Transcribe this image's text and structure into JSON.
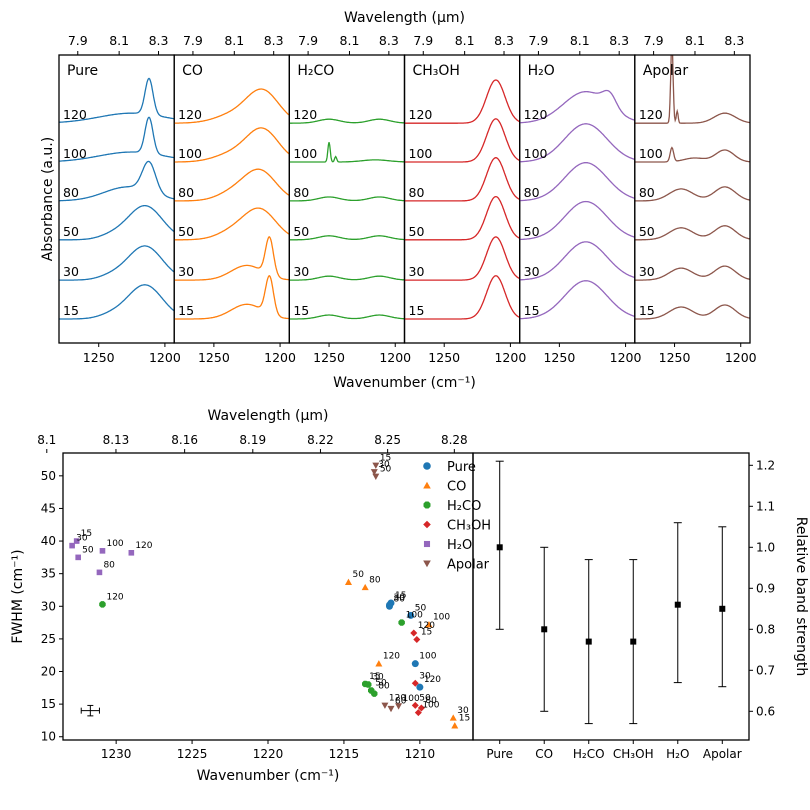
{
  "colors": {
    "Pure": "#1f77b4",
    "CO": "#ff7f0e",
    "H2CO": "#2ca02c",
    "CH3OH": "#d62728",
    "H2O": "#9467bd",
    "Apolar": "#8c564b"
  },
  "chart_data": [
    {
      "type": "line",
      "title": "",
      "xlabel": "Wavenumber (cm⁻¹)",
      "ylabel": "Absorbance (a.u.)",
      "top_xlabel": "Wavelength (μm)",
      "xlim": [
        1280,
        1193
      ],
      "xticks": [
        "1250",
        "1200"
      ],
      "top_ticks": [
        "7.9",
        "8.1",
        "8.3"
      ],
      "legend": "none",
      "panels": [
        {
          "name": "Pure",
          "label": "Pure",
          "temps": [
            "120",
            "100",
            "80",
            "50",
            "30",
            "15"
          ]
        },
        {
          "name": "CO",
          "label": "CO",
          "temps": [
            "120",
            "100",
            "80",
            "50",
            "30",
            "15"
          ]
        },
        {
          "name": "H2CO",
          "label": "H₂CO",
          "temps": [
            "120",
            "100",
            "80",
            "50",
            "30",
            "15"
          ]
        },
        {
          "name": "CH3OH",
          "label": "CH₃OH",
          "temps": [
            "120",
            "100",
            "80",
            "50",
            "30",
            "15"
          ]
        },
        {
          "name": "H2O",
          "label": "H₂O",
          "temps": [
            "120",
            "100",
            "80",
            "50",
            "30",
            "15"
          ]
        },
        {
          "name": "Apolar",
          "label": "Apolar",
          "temps": [
            "120",
            "100",
            "80",
            "50",
            "30",
            "15"
          ]
        }
      ]
    },
    {
      "type": "scatter",
      "title": "",
      "xlabel": "Wavenumber (cm⁻¹)",
      "ylabel": "FWHM (cm⁻¹)",
      "top_xlabel": "Wavelength (μm)",
      "xlim": [
        1233.5,
        1206.5
      ],
      "ylim": [
        9.5,
        53.5
      ],
      "xticks": [
        "1230",
        "1225",
        "1220",
        "1215",
        "1210"
      ],
      "yticks": [
        "10",
        "15",
        "20",
        "25",
        "30",
        "35",
        "40",
        "45",
        "50"
      ],
      "top_ticks": [
        "8.1",
        "8.13",
        "8.16",
        "8.19",
        "8.22",
        "8.25",
        "8.28"
      ],
      "legend_position": "top-right",
      "legend": [
        {
          "name": "Pure",
          "label": "Pure"
        },
        {
          "name": "CO",
          "label": "CO"
        },
        {
          "name": "H2CO",
          "label": "H₂CO"
        },
        {
          "name": "CH3OH",
          "label": "CH₃OH"
        },
        {
          "name": "H2O",
          "label": "H₂O"
        },
        {
          "name": "Apolar",
          "label": "Apolar"
        }
      ],
      "error_bar": {
        "x": 1231.7,
        "y": 14.0,
        "xerr": 0.6,
        "yerr": 0.8
      },
      "points": [
        {
          "s": "Pure",
          "x": 1211.9,
          "y": 30.5,
          "t": "15"
        },
        {
          "s": "Pure",
          "x": 1212.0,
          "y": 30.2,
          "t": "30"
        },
        {
          "s": "Pure",
          "x": 1210.6,
          "y": 28.6,
          "t": "50"
        },
        {
          "s": "Pure",
          "x": 1212.0,
          "y": 30.0,
          "t": "80"
        },
        {
          "s": "Pure",
          "x": 1210.3,
          "y": 21.2,
          "t": "100"
        },
        {
          "s": "Pure",
          "x": 1210.0,
          "y": 17.6,
          "t": "120"
        },
        {
          "s": "CO",
          "x": 1207.7,
          "y": 11.7,
          "t": "15"
        },
        {
          "s": "CO",
          "x": 1207.8,
          "y": 12.9,
          "t": "30"
        },
        {
          "s": "CO",
          "x": 1214.7,
          "y": 33.7,
          "t": "50"
        },
        {
          "s": "CO",
          "x": 1213.6,
          "y": 32.9,
          "t": "80"
        },
        {
          "s": "CO",
          "x": 1209.4,
          "y": 27.2,
          "t": "100"
        },
        {
          "s": "CO",
          "x": 1212.7,
          "y": 21.2,
          "t": "120"
        },
        {
          "s": "H2CO",
          "x": 1213.6,
          "y": 18.1,
          "t": "15"
        },
        {
          "s": "H2CO",
          "x": 1213.4,
          "y": 18.0,
          "t": "30"
        },
        {
          "s": "H2CO",
          "x": 1213.2,
          "y": 17.1,
          "t": "50"
        },
        {
          "s": "H2CO",
          "x": 1213.0,
          "y": 16.6,
          "t": "80"
        },
        {
          "s": "H2CO",
          "x": 1211.2,
          "y": 27.5,
          "t": "100"
        },
        {
          "s": "H2CO",
          "x": 1230.9,
          "y": 30.3,
          "t": "120"
        },
        {
          "s": "CH3OH",
          "x": 1210.2,
          "y": 24.9,
          "t": "15"
        },
        {
          "s": "CH3OH",
          "x": 1210.3,
          "y": 18.2,
          "t": "30"
        },
        {
          "s": "CH3OH",
          "x": 1210.3,
          "y": 14.8,
          "t": "50"
        },
        {
          "s": "CH3OH",
          "x": 1209.9,
          "y": 14.4,
          "t": "80"
        },
        {
          "s": "CH3OH",
          "x": 1210.1,
          "y": 13.7,
          "t": "100"
        },
        {
          "s": "CH3OH",
          "x": 1210.4,
          "y": 25.9,
          "t": "120"
        },
        {
          "s": "H2O",
          "x": 1232.6,
          "y": 40.0,
          "t": "15"
        },
        {
          "s": "H2O",
          "x": 1232.9,
          "y": 39.3,
          "t": "30"
        },
        {
          "s": "H2O",
          "x": 1232.5,
          "y": 37.5,
          "t": "50"
        },
        {
          "s": "H2O",
          "x": 1231.1,
          "y": 35.2,
          "t": "80"
        },
        {
          "s": "H2O",
          "x": 1230.9,
          "y": 38.5,
          "t": "100"
        },
        {
          "s": "H2O",
          "x": 1229.0,
          "y": 38.2,
          "t": "120"
        },
        {
          "s": "Apolar",
          "x": 1212.9,
          "y": 51.6,
          "t": "15"
        },
        {
          "s": "Apolar",
          "x": 1213.0,
          "y": 50.6,
          "t": "30"
        },
        {
          "s": "Apolar",
          "x": 1212.9,
          "y": 49.9,
          "t": "50"
        },
        {
          "s": "Apolar",
          "x": 1211.9,
          "y": 14.3,
          "t": "80"
        },
        {
          "s": "Apolar",
          "x": 1211.4,
          "y": 14.7,
          "t": "100"
        },
        {
          "s": "Apolar",
          "x": 1212.3,
          "y": 14.8,
          "t": "120"
        }
      ]
    },
    {
      "type": "errorbar",
      "title": "",
      "ylabel": "Relative band strength",
      "ylim": [
        0.53,
        1.23
      ],
      "yticks": [
        "0.6",
        "0.7",
        "0.8",
        "0.9",
        "1.0",
        "1.1",
        "1.2"
      ],
      "categories": [
        "Pure",
        "CO",
        "H₂CO",
        "CH₃OH",
        "H₂O",
        "Apolar"
      ],
      "values": [
        1.0,
        0.8,
        0.77,
        0.77,
        0.86,
        0.85
      ],
      "errors": [
        [
          0.8,
          1.21
        ],
        [
          0.6,
          1.0
        ],
        [
          0.57,
          0.97
        ],
        [
          0.57,
          0.97
        ],
        [
          0.67,
          1.06
        ],
        [
          0.66,
          1.05
        ]
      ]
    }
  ]
}
